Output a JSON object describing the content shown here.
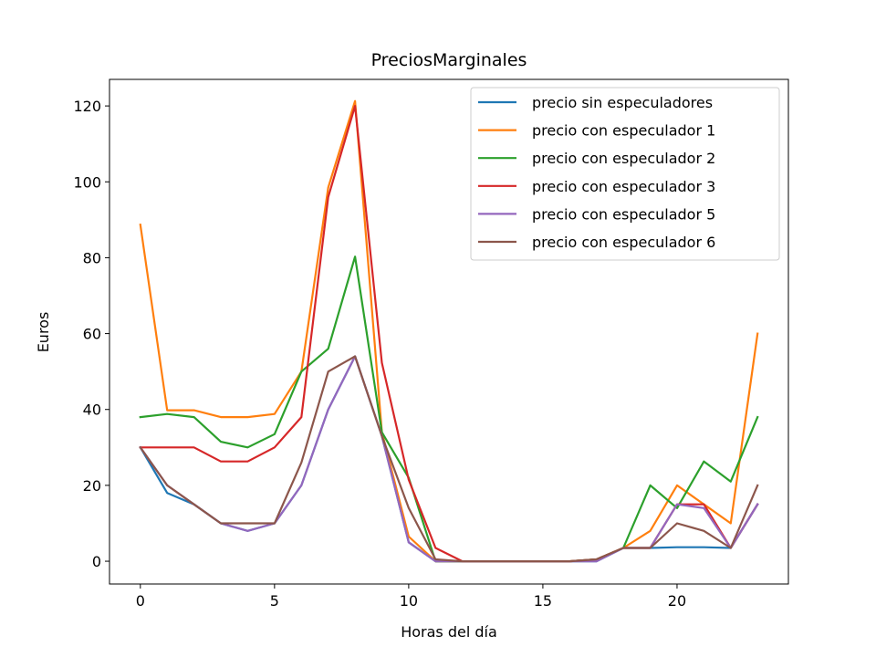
{
  "chart_data": {
    "type": "line",
    "title": "PreciosMarginales",
    "xlabel": "Horas del día",
    "ylabel": "Euros",
    "xlim": [
      -1.15,
      24.15
    ],
    "ylim": [
      -6,
      127
    ],
    "xticks": [
      0,
      5,
      10,
      15,
      20
    ],
    "yticks": [
      0,
      20,
      40,
      60,
      80,
      100,
      120
    ],
    "grid": false,
    "legend_position": "top-right",
    "x": [
      0,
      1,
      2,
      3,
      4,
      5,
      6,
      7,
      8,
      9,
      10,
      11,
      12,
      13,
      14,
      15,
      16,
      17,
      18,
      19,
      20,
      21,
      22,
      23
    ],
    "series": [
      {
        "name": "precio sin especuladores",
        "color": "#1f77b4",
        "values": [
          30,
          18,
          15,
          10,
          8,
          10,
          20,
          40,
          54,
          33,
          5,
          0,
          0,
          0,
          0,
          0,
          0,
          0,
          3.5,
          3.5,
          3.7,
          3.7,
          3.5,
          15
        ]
      },
      {
        "name": "precio con especulador 1",
        "color": "#ff7f0e",
        "values": [
          88.7,
          39.8,
          39.8,
          38,
          38,
          38.8,
          50,
          98.5,
          121.3,
          34,
          6.5,
          0,
          0,
          0,
          0,
          0,
          0,
          0.5,
          3.5,
          8,
          20,
          15,
          10,
          60
        ]
      },
      {
        "name": "precio con especulador 2",
        "color": "#2ca02c",
        "values": [
          38,
          38.8,
          38,
          31.5,
          30,
          33.5,
          50,
          56,
          80.3,
          34,
          22,
          0,
          0,
          0,
          0,
          0,
          0,
          0.5,
          3.5,
          20,
          14,
          26.3,
          21,
          38
        ]
      },
      {
        "name": "precio con especulador 3",
        "color": "#d62728",
        "values": [
          30,
          30,
          30,
          26.3,
          26.3,
          30,
          38,
          96,
          120,
          52.3,
          21.5,
          3.5,
          0,
          0,
          0,
          0,
          0,
          0.5,
          3.5,
          3.5,
          15,
          15,
          3.5,
          15
        ]
      },
      {
        "name": "precio con especulador 5",
        "color": "#9467bd",
        "values": [
          30,
          20,
          15,
          10,
          8,
          10,
          20,
          40,
          54,
          33,
          5,
          0,
          0,
          0,
          0,
          0,
          0,
          0,
          3.5,
          3.5,
          15,
          14,
          3.5,
          15
        ]
      },
      {
        "name": "precio con especulador 6",
        "color": "#8c564b",
        "values": [
          30,
          20,
          15,
          10,
          10,
          10,
          26,
          50,
          54,
          33,
          14,
          0.5,
          0,
          0,
          0,
          0,
          0,
          0.5,
          3.5,
          3.5,
          10,
          8,
          3.5,
          20
        ]
      }
    ]
  }
}
